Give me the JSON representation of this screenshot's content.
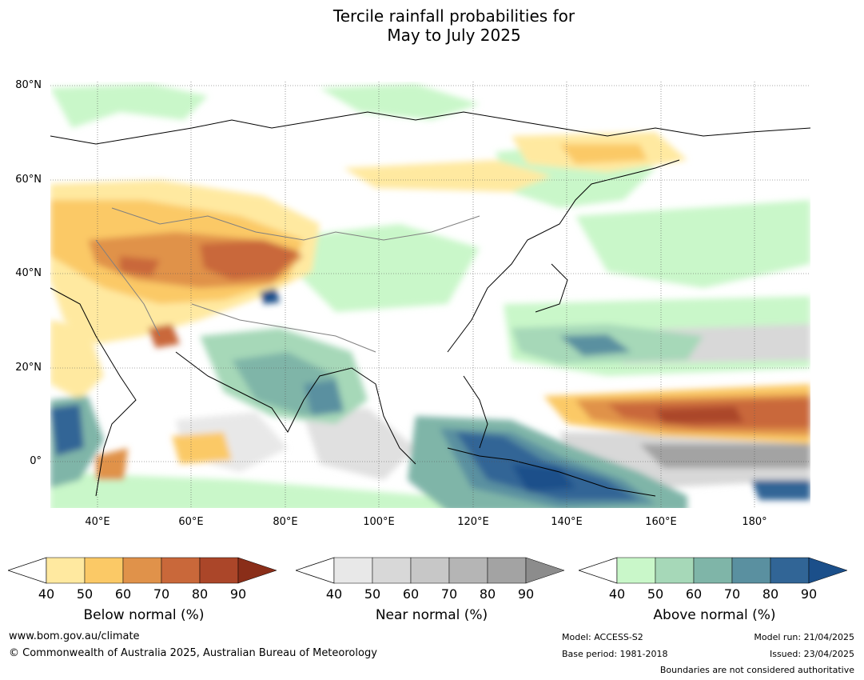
{
  "title_line1": "Tercile rainfall probabilities for",
  "title_line2": "May to July 2025",
  "lat_labels": [
    "80°N",
    "60°N",
    "40°N",
    "20°N",
    "0°"
  ],
  "lon_labels": [
    "40°E",
    "60°E",
    "80°E",
    "100°E",
    "120°E",
    "140°E",
    "160°E",
    "180°"
  ],
  "colorbars": [
    {
      "caption": "Below normal (%)",
      "ticks": [
        "40",
        "50",
        "60",
        "70",
        "80",
        "90"
      ],
      "colors": [
        "#ffe9a0",
        "#fbc966",
        "#e0924a",
        "#c9683a",
        "#ab4629",
        "#8a2e19"
      ]
    },
    {
      "caption": "Near normal (%)",
      "ticks": [
        "40",
        "50",
        "60",
        "70",
        "80",
        "90"
      ],
      "colors": [
        "#e8e8e8",
        "#d8d8d8",
        "#c7c7c7",
        "#b5b5b5",
        "#a3a3a3",
        "#8c8c8c"
      ]
    },
    {
      "caption": "Above normal (%)",
      "ticks": [
        "40",
        "50",
        "60",
        "70",
        "80",
        "90"
      ],
      "colors": [
        "#c9f7c9",
        "#a6d8b8",
        "#7fb5a8",
        "#5a90a0",
        "#316596",
        "#1b4f8a"
      ]
    }
  ],
  "footer": {
    "website": "www.bom.gov.au/climate",
    "copyright": "© Commonwealth of Australia 2025, Australian Bureau of Meteorology",
    "model": "Model: ACCESS-S2",
    "base_period": "Base period: 1981-2018",
    "model_run": "Model run: 21/04/2025",
    "issued": "Issued: 23/04/2025",
    "disclaimer": "Boundaries are not considered authoritative"
  }
}
